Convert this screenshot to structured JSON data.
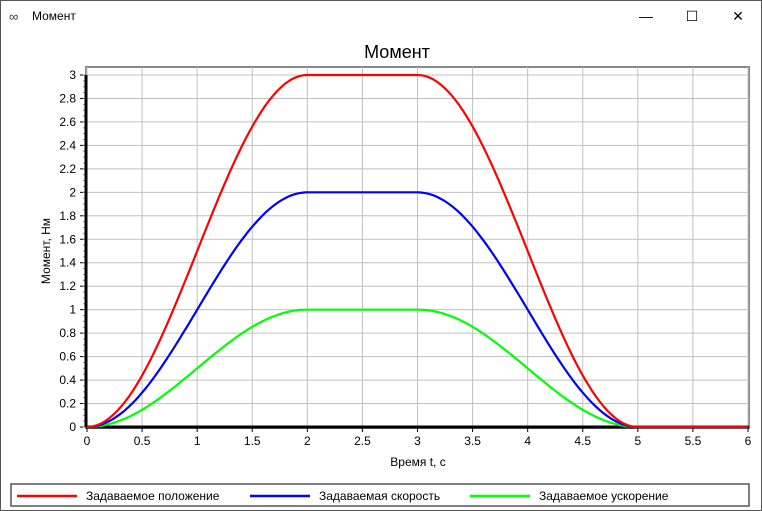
{
  "window": {
    "title": "Момент",
    "icon": "app-link-icon",
    "buttons": {
      "minimize": "—",
      "maximize": "☐",
      "close": "✕"
    }
  },
  "chart_data": {
    "type": "line",
    "title": "Момент",
    "xlabel": "Время t, с",
    "ylabel": "Момент, Нм",
    "xlim": [
      0,
      6
    ],
    "ylim": [
      0,
      3
    ],
    "xticks": [
      "0",
      "0.5",
      "1",
      "1.5",
      "2",
      "2.5",
      "3",
      "3.5",
      "4",
      "4.5",
      "5",
      "5.5",
      "6"
    ],
    "yticks": [
      "0",
      "0.2",
      "0.4",
      "0.6",
      "0.8",
      "1",
      "1.2",
      "1.4",
      "1.6",
      "1.8",
      "2",
      "2.2",
      "2.4",
      "2.6",
      "2.8",
      "3"
    ],
    "grid": true,
    "legend_position": "bottom",
    "profile": {
      "rise": [
        0,
        2
      ],
      "hold": [
        2,
        3
      ],
      "fall": [
        3,
        5
      ]
    },
    "series": [
      {
        "name": "Задаваемое положение",
        "color": "#ff0000",
        "peak": 3
      },
      {
        "name": "Задаваемая скорость",
        "color": "#0000ff",
        "peak": 2
      },
      {
        "name": "Задаваемое ускорение",
        "color": "#00ff00",
        "peak": 1
      }
    ]
  }
}
